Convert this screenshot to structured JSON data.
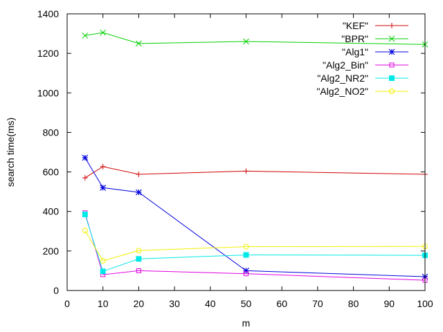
{
  "chart_data": {
    "type": "line",
    "title": "",
    "xlabel": "m",
    "ylabel": "search time(ms)",
    "xlim": [
      0,
      100
    ],
    "ylim": [
      0,
      1400
    ],
    "xticks": [
      0,
      10,
      20,
      30,
      40,
      50,
      60,
      70,
      80,
      90,
      100
    ],
    "yticks": [
      0,
      200,
      400,
      600,
      800,
      1000,
      1200,
      1400
    ],
    "grid": false,
    "legend_position": "top-right",
    "x": [
      5,
      10,
      20,
      50,
      100
    ],
    "series": [
      {
        "name": "\"KEF\"",
        "color": "#d00000",
        "marker": "plus",
        "values": [
          570,
          627,
          588,
          604,
          588
        ]
      },
      {
        "name": "\"BPR\"",
        "color": "#00d000",
        "marker": "x",
        "values": [
          1290,
          1305,
          1250,
          1260,
          1245
        ]
      },
      {
        "name": "\"Alg1\"",
        "color": "#0000e0",
        "marker": "star",
        "values": [
          672,
          520,
          497,
          100,
          70
        ]
      },
      {
        "name": "\"Alg2_Bin\"",
        "color": "#e000e0",
        "marker": "square-open",
        "values": [
          393,
          80,
          100,
          85,
          52
        ]
      },
      {
        "name": "\"Alg2_NR2\"",
        "color": "#00e8e8",
        "marker": "square-filled",
        "values": [
          385,
          97,
          160,
          180,
          178
        ]
      },
      {
        "name": "\"Alg2_NO2\"",
        "color": "#f0f000",
        "marker": "circle-open",
        "values": [
          303,
          150,
          202,
          222,
          223
        ]
      }
    ]
  }
}
